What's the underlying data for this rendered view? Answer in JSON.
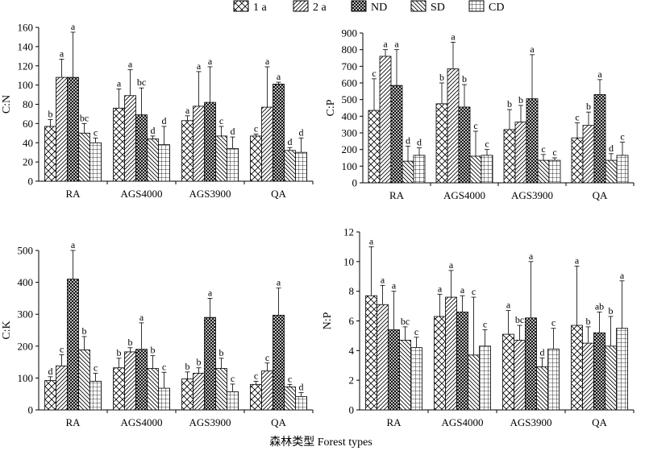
{
  "figure": {
    "xlabel": "森林类型 Forest types"
  },
  "legend": {
    "items": [
      {
        "label": "1 a",
        "pattern": "crosshatch"
      },
      {
        "label": "2 a",
        "pattern": "diagonal"
      },
      {
        "label": "ND",
        "pattern": "dense-crosshatch"
      },
      {
        "label": "SD",
        "pattern": "backdiagonal"
      },
      {
        "label": "CD",
        "pattern": "grid"
      }
    ]
  },
  "chart_data": [
    {
      "type": "bar",
      "ylabel": "C:N",
      "ylim": [
        0,
        160
      ],
      "yticks": [
        0,
        20,
        40,
        60,
        80,
        100,
        120,
        140,
        160
      ],
      "categories": [
        "RA",
        "AGS4000",
        "AGS3900",
        "QA"
      ],
      "series": [
        {
          "name": "1 a",
          "values": [
            57,
            76,
            63,
            47
          ],
          "errors": [
            7,
            20,
            5,
            2
          ],
          "letters": [
            "b",
            "a",
            "a",
            "c"
          ]
        },
        {
          "name": "2 a",
          "values": [
            108,
            89,
            78,
            77
          ],
          "errors": [
            19,
            27,
            36,
            42
          ],
          "letters": [
            "a",
            "a",
            "a",
            "a"
          ]
        },
        {
          "name": "ND",
          "values": [
            108,
            69,
            82,
            101
          ],
          "errors": [
            47,
            28,
            37,
            2
          ],
          "letters": [
            "a",
            "bc",
            "a",
            "a"
          ]
        },
        {
          "name": "SD",
          "values": [
            50,
            44,
            47,
            32
          ],
          "errors": [
            10,
            3,
            10,
            3
          ],
          "letters": [
            "bc",
            "d",
            "c",
            "d"
          ]
        },
        {
          "name": "CD",
          "values": [
            40,
            38,
            34,
            30
          ],
          "errors": [
            5,
            19,
            12,
            15
          ],
          "letters": [
            "c",
            "d",
            "d",
            "d"
          ]
        }
      ]
    },
    {
      "type": "bar",
      "ylabel": "C:P",
      "ylim": [
        0,
        900
      ],
      "yticks": [
        0,
        100,
        200,
        300,
        400,
        500,
        600,
        700,
        800,
        900
      ],
      "categories": [
        "RA",
        "AGS4000",
        "AGS3900",
        "QA"
      ],
      "series": [
        {
          "name": "1 a",
          "values": [
            435,
            475,
            320,
            270
          ],
          "errors": [
            190,
            125,
            120,
            90
          ],
          "letters": [
            "c",
            "b",
            "b",
            "c"
          ]
        },
        {
          "name": "2 a",
          "values": [
            760,
            685,
            365,
            345
          ],
          "errors": [
            40,
            160,
            100,
            80
          ],
          "letters": [
            "a",
            "a",
            "b",
            "b"
          ]
        },
        {
          "name": "ND",
          "values": [
            585,
            455,
            505,
            530
          ],
          "errors": [
            215,
            135,
            265,
            90
          ],
          "letters": [
            "a",
            "b",
            "a",
            "a"
          ]
        },
        {
          "name": "SD",
          "values": [
            130,
            160,
            135,
            135
          ],
          "errors": [
            90,
            150,
            35,
            40
          ],
          "letters": [
            "d",
            "c",
            "c",
            "d"
          ]
        },
        {
          "name": "CD",
          "values": [
            165,
            165,
            135,
            165
          ],
          "errors": [
            45,
            35,
            15,
            80
          ],
          "letters": [
            "d",
            "c",
            "c",
            "c"
          ]
        }
      ]
    },
    {
      "type": "bar",
      "ylabel": "C:K",
      "ylim": [
        0,
        500
      ],
      "yticks": [
        0,
        100,
        200,
        300,
        400,
        500
      ],
      "categories": [
        "RA",
        "AGS4000",
        "AGS3900",
        "QA"
      ],
      "series": [
        {
          "name": "1 a",
          "values": [
            92,
            132,
            97,
            80
          ],
          "errors": [
            12,
            30,
            22,
            10
          ],
          "letters": [
            "d",
            "b",
            "b",
            "c"
          ]
        },
        {
          "name": "2 a",
          "values": [
            138,
            182,
            115,
            122
          ],
          "errors": [
            35,
            13,
            17,
            25
          ],
          "letters": [
            "c",
            "b",
            "b",
            "c"
          ]
        },
        {
          "name": "ND",
          "values": [
            410,
            190,
            290,
            297
          ],
          "errors": [
            118,
            83,
            60,
            85
          ],
          "letters": [
            "a",
            "a",
            "a",
            "a"
          ]
        },
        {
          "name": "SD",
          "values": [
            188,
            130,
            130,
            72
          ],
          "errors": [
            42,
            40,
            32,
            8
          ],
          "letters": [
            "b",
            "b",
            "b",
            "c"
          ]
        },
        {
          "name": "CD",
          "values": [
            90,
            68,
            57,
            42
          ],
          "errors": [
            25,
            50,
            24,
            12
          ],
          "letters": [
            "c",
            "c",
            "c",
            "d"
          ]
        }
      ]
    },
    {
      "type": "bar",
      "ylabel": "N:P",
      "ylim": [
        0,
        12
      ],
      "yticks": [
        0,
        2,
        4,
        6,
        8,
        10,
        12
      ],
      "categories": [
        "RA",
        "AGS4000",
        "AGS3900",
        "QA"
      ],
      "series": [
        {
          "name": "1 a",
          "values": [
            7.7,
            6.3,
            5.1,
            5.7
          ],
          "errors": [
            3.3,
            1.5,
            1.6,
            4.0
          ],
          "letters": [
            "a",
            "a",
            "a",
            "a"
          ]
        },
        {
          "name": "2 a",
          "values": [
            7.1,
            7.6,
            4.7,
            4.5
          ],
          "errors": [
            1.3,
            1.8,
            1.0,
            1.1
          ],
          "letters": [
            "a",
            "a",
            "bc",
            "b"
          ]
        },
        {
          "name": "ND",
          "values": [
            5.4,
            6.6,
            6.2,
            5.2
          ],
          "errors": [
            2.6,
            1.1,
            3.8,
            1.4
          ],
          "letters": [
            "a",
            "a",
            "a",
            "ab"
          ]
        },
        {
          "name": "SD",
          "values": [
            4.7,
            3.7,
            2.9,
            4.3
          ],
          "errors": [
            0.9,
            3.9,
            0.6,
            2.0
          ],
          "letters": [
            "bc",
            "c",
            "d",
            "b"
          ]
        },
        {
          "name": "CD",
          "values": [
            4.2,
            4.3,
            4.1,
            5.5
          ],
          "errors": [
            0.7,
            1.1,
            1.4,
            3.2
          ],
          "letters": [
            "c",
            "c",
            "c",
            "a"
          ]
        }
      ]
    }
  ]
}
